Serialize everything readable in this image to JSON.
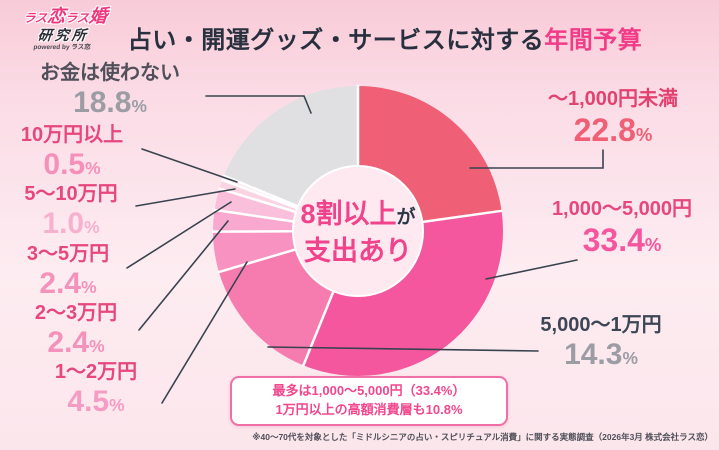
{
  "logo": {
    "brand_parts": [
      "ラス",
      "恋",
      "ラス",
      "婚"
    ],
    "brand_bottom": "研究所",
    "powered": "powered by ラス恋"
  },
  "header": {
    "title_main": "占い・開運グッズ・サービスに対する",
    "title_accent": "年間予算",
    "accent_color": "#F23C88"
  },
  "center_label": {
    "big1": "8割以上",
    "small1": "が",
    "big2": "支出あり"
  },
  "percent_sign": "%",
  "callouts": {
    "left": [
      {
        "name": "お金は使わない",
        "pct": "18.8",
        "name_color": "#50505A",
        "pct_color": "#9C9CA4"
      },
      {
        "name": "10万円以上",
        "pct": "0.5",
        "name_color": "#E5477E",
        "pct_color": "#F590BA"
      },
      {
        "name": "5〜10万円",
        "pct": "1.0",
        "name_color": "#E5477E",
        "pct_color": "#F7B0CE"
      },
      {
        "name": "3〜5万円",
        "pct": "2.4",
        "name_color": "#E5477E",
        "pct_color": "#F492BC"
      },
      {
        "name": "2〜3万円",
        "pct": "2.4",
        "name_color": "#E5477E",
        "pct_color": "#F492BC"
      },
      {
        "name": "1〜2万円",
        "pct": "4.5",
        "name_color": "#E5477E",
        "pct_color": "#F59CC4"
      }
    ],
    "right": [
      {
        "name": "〜1,000円未満",
        "pct": "22.8",
        "name_color": "#E34270",
        "pct_color": "#EF6076"
      },
      {
        "name": "1,000〜5,000円",
        "pct": "33.4",
        "name_color": "#E5477E",
        "pct_color": "#F4579D"
      },
      {
        "name": "5,000〜1万円",
        "pct": "14.3",
        "name_color": "#3C4654",
        "pct_color": "#9C9CA4"
      }
    ]
  },
  "annotation": {
    "line1": "最多は1,000〜5,000円（33.4%）",
    "line2": "1万円以上の高額消費層も10.8%"
  },
  "footnote": "※40〜70代を対象とした「ミドルシニアの占い・スピリチュアル消費」に関する実態調査（2026年3月 株式会社ラス恋）",
  "chart_data": {
    "type": "pie",
    "donut": true,
    "title": "占い・開運グッズ・サービスに対する年間予算",
    "unit": "%",
    "start_angle_deg": 0,
    "direction": "clockwise",
    "hole_color": "#FDE9EF",
    "separator_color": "#FFFFFF",
    "leader_line_color": "#39434F",
    "center_text": "8割以上が支出あり",
    "segments": [
      {
        "label": "〜1,000円未満",
        "value": 22.8,
        "color": "#EF6076"
      },
      {
        "label": "1,000〜5,000円",
        "value": 33.4,
        "color": "#F4579D"
      },
      {
        "label": "5,000〜1万円",
        "value": 14.3,
        "color": "#F67CB0"
      },
      {
        "label": "1〜2万円",
        "value": 4.5,
        "color": "#F893C1"
      },
      {
        "label": "2〜3万円",
        "value": 2.4,
        "color": "#F9A9CF"
      },
      {
        "label": "3〜5万円",
        "value": 2.4,
        "color": "#FABFDB"
      },
      {
        "label": "5〜10万円",
        "value": 1.0,
        "color": "#FBD4E4"
      },
      {
        "label": "10万円以上",
        "value": 0.5,
        "color": "#FDEBF2"
      },
      {
        "label": "お金は使わない",
        "value": 18.8,
        "color": "#E0DFE1"
      }
    ]
  }
}
